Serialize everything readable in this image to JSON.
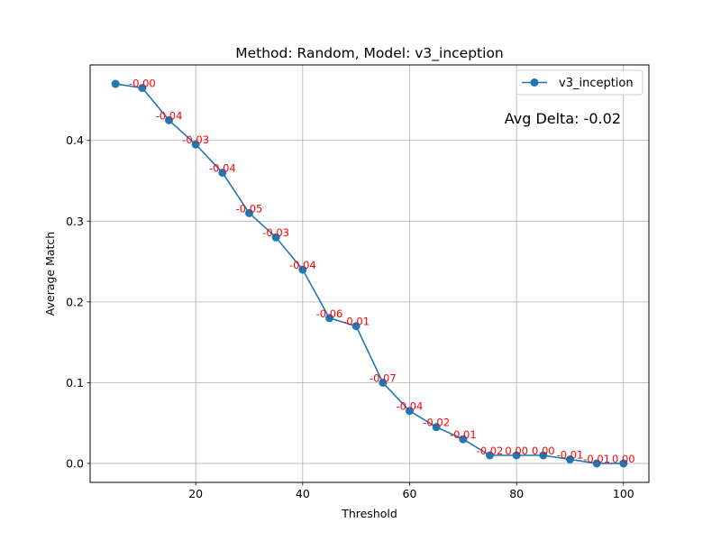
{
  "chart_data": {
    "type": "line",
    "title": "Method: Random, Model: v3_inception",
    "xlabel": "Threshold",
    "ylabel": "Average Match",
    "xlim": [
      0.25,
      104.75
    ],
    "ylim": [
      -0.0235,
      0.4935
    ],
    "xticks": [
      20,
      40,
      60,
      80,
      100
    ],
    "yticks": [
      0.0,
      0.1,
      0.2,
      0.3,
      0.4
    ],
    "xtick_labels": [
      "20",
      "40",
      "60",
      "80",
      "100"
    ],
    "ytick_labels": [
      "0.0",
      "0.1",
      "0.2",
      "0.3",
      "0.4"
    ],
    "grid": true,
    "legend_position": "top-right",
    "x": [
      5,
      10,
      15,
      20,
      25,
      30,
      35,
      40,
      45,
      50,
      55,
      60,
      65,
      70,
      75,
      80,
      85,
      90,
      95,
      100
    ],
    "series": [
      {
        "name": "v3_inception",
        "color": "#1f77b4",
        "marker": "circle",
        "values": [
          0.47,
          0.465,
          0.425,
          0.395,
          0.36,
          0.31,
          0.28,
          0.24,
          0.18,
          0.17,
          0.1,
          0.065,
          0.045,
          0.03,
          0.01,
          0.01,
          0.01,
          0.005,
          0.0,
          0.0
        ]
      }
    ],
    "delta_labels": [
      "-0.00",
      "-0.04",
      "-0.03",
      "-0.04",
      "-0.05",
      "-0.03",
      "-0.04",
      "-0.06",
      "-0.01",
      "-0.07",
      "-0.04",
      "-0.02",
      "-0.01",
      "-0.02",
      "0.00",
      "0.00",
      "-0.01",
      "-0.01",
      "0.00"
    ],
    "delta_color": "#ff0000",
    "annotation": "Avg Delta: -0.02"
  }
}
